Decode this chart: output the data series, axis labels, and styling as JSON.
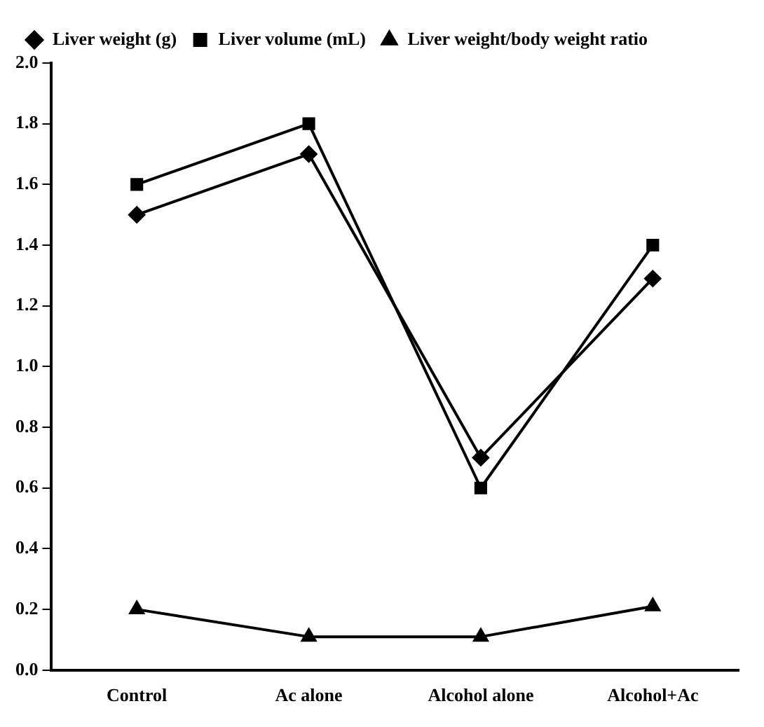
{
  "chart_data": {
    "type": "line",
    "categories": [
      "Control",
      "Ac alone",
      "Alcohol alone",
      "Alcohol+Ac"
    ],
    "series": [
      {
        "name": "Liver weight (g)",
        "color": "#000000",
        "marker": "diamond",
        "values": [
          1.5,
          1.7,
          0.7,
          1.29
        ]
      },
      {
        "name": "Liver volume (mL)",
        "color": "#000000",
        "marker": "square",
        "values": [
          1.6,
          1.8,
          0.6,
          1.4
        ]
      },
      {
        "name": "Liver weight/body weight ratio",
        "color": "#000000",
        "marker": "triangle",
        "values": [
          0.2,
          0.11,
          0.11,
          0.21
        ]
      }
    ],
    "ylim": [
      0,
      2
    ],
    "yticks": [
      {
        "value": 0,
        "label": "0.0"
      },
      0.2,
      0.4,
      0.6,
      0.8,
      {
        "value": 1,
        "label": "1.0"
      },
      1.2,
      1.4,
      1.6,
      1.8,
      {
        "value": 2,
        "label": "2.0"
      }
    ],
    "grid": false,
    "legend": "top left",
    "line_style": "solid"
  }
}
